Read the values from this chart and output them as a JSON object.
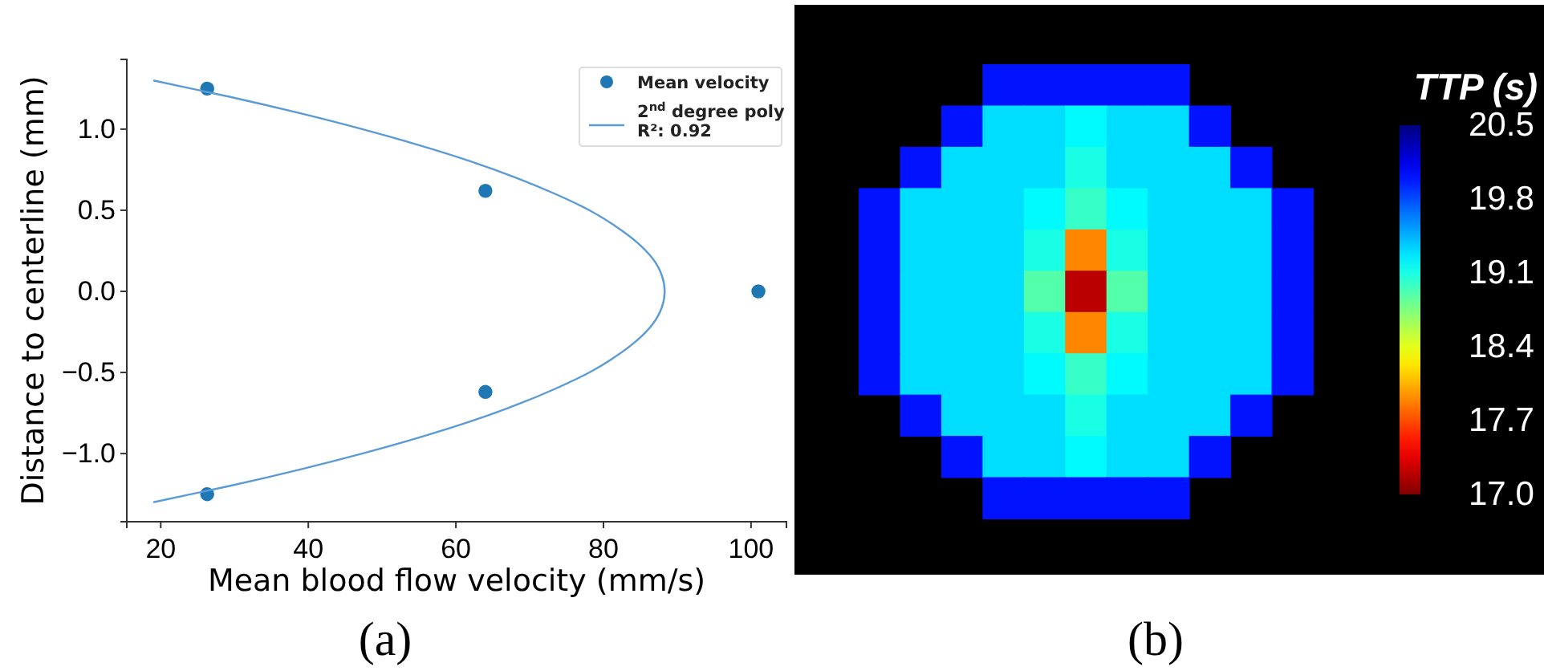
{
  "chart_data": [
    {
      "type": "scatter",
      "xlabel": "Mean blood flow velocity (mm/s)",
      "ylabel": "Distance to centerline (mm)",
      "annotations": [
        "(a)"
      ],
      "xlim": [
        15.4,
        104.8
      ],
      "ylim": [
        -1.42,
        1.43
      ],
      "xticks": [
        20,
        40,
        60,
        80,
        100
      ],
      "yticks": [
        {
          "value": -1,
          "label": "−1.0"
        },
        {
          "value": -0.5,
          "label": "−0.5"
        },
        {
          "value": 0,
          "label": "0.0"
        },
        {
          "value": 0.5,
          "label": "0.5"
        },
        {
          "value": 1,
          "label": "1.0"
        }
      ],
      "grid": false,
      "legend": "top right",
      "line_style": "solid",
      "series": [
        {
          "name": "Mean velocity",
          "type": "scatter",
          "marker": "circle",
          "color": "#1f77b4",
          "x": [
            26.3,
            64,
            101,
            64,
            26.3
          ],
          "values": [
            1.25,
            0.62,
            0,
            -0.62,
            -1.25
          ]
        },
        {
          "name": "2$^{nd}$ degree poly\nR²: 0.92",
          "type": "line",
          "marker": "none",
          "color": "#5b9bd5",
          "x": [
            19,
            29.3,
            38.7,
            47.3,
            55.1,
            62.1,
            68.2,
            73.5,
            78.1,
            81.7,
            84.6,
            86.7,
            87.9,
            88.3,
            87.9,
            86.7,
            84.6,
            81.7,
            78.1,
            73.5,
            68.2,
            62.1,
            55.1,
            47.3,
            38.7,
            29.3,
            19
          ],
          "values": [
            1.3,
            1.2,
            1.1,
            1,
            0.9,
            0.8,
            0.7,
            0.6,
            0.5,
            0.4,
            0.3,
            0.2,
            0.1,
            0,
            -0.1,
            -0.2,
            -0.3,
            -0.4,
            -0.5,
            -0.6,
            -0.7,
            -0.8,
            -0.9,
            -1,
            -1.1,
            -1.2,
            -1.3
          ]
        }
      ]
    },
    {
      "type": "heatmap",
      "clabel": "TTP (s)",
      "annotations": [
        "(b)"
      ],
      "tick_labels": false,
      "categories": [
        null,
        null,
        null,
        null,
        null,
        null,
        null,
        null,
        null,
        null,
        null
      ],
      "y_categories": [
        null,
        null,
        null,
        null,
        null,
        null,
        null,
        null,
        null,
        null,
        null
      ],
      "clim": [
        17,
        20.5
      ],
      "cticks": [
        {
          "value": 17,
          "label": "17.0"
        },
        {
          "value": 17.7,
          "label": "17.7"
        },
        {
          "value": 18.4,
          "label": "18.4"
        },
        {
          "value": 19.1,
          "label": "19.1"
        },
        {
          "value": 19.8,
          "label": "19.8"
        },
        {
          "value": 20.5,
          "label": "20.5"
        }
      ],
      "cells": [
        [
          null,
          null,
          null,
          20,
          20,
          20,
          20,
          20,
          null,
          null,
          null
        ],
        [
          null,
          null,
          20,
          19.3,
          19.3,
          19.2,
          19.3,
          19.3,
          20,
          null,
          null
        ],
        [
          null,
          20,
          19.3,
          19.3,
          19.3,
          19.1,
          19.3,
          19.3,
          19.3,
          20,
          null
        ],
        [
          20,
          19.3,
          19.3,
          19.3,
          19.2,
          19,
          19.2,
          19.3,
          19.3,
          19.3,
          20
        ],
        [
          20,
          19.3,
          19.3,
          19.3,
          19.1,
          17.9,
          19.1,
          19.3,
          19.3,
          19.3,
          20
        ],
        [
          20,
          19.3,
          19.3,
          19.3,
          18.9,
          17.2,
          18.9,
          19.3,
          19.3,
          19.3,
          20
        ],
        [
          20,
          19.3,
          19.3,
          19.3,
          19.1,
          17.9,
          19.1,
          19.3,
          19.3,
          19.3,
          20
        ],
        [
          20,
          19.3,
          19.3,
          19.3,
          19.2,
          19,
          19.2,
          19.3,
          19.3,
          19.3,
          20
        ],
        [
          null,
          20,
          19.3,
          19.3,
          19.3,
          19.1,
          19.3,
          19.3,
          19.3,
          20,
          null
        ],
        [
          null,
          null,
          20,
          19.3,
          19.3,
          19.2,
          19.3,
          19.3,
          20,
          null,
          null
        ],
        [
          null,
          null,
          null,
          20,
          20,
          20,
          20,
          20,
          null,
          null,
          null
        ]
      ]
    }
  ]
}
